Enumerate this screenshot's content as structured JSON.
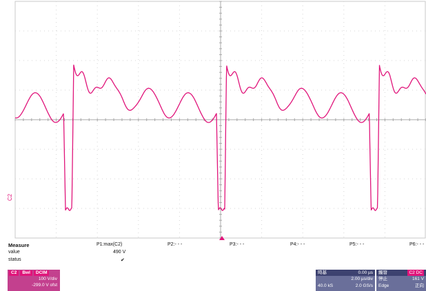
{
  "channel_marker": "C2",
  "measure": {
    "title": "Measure",
    "row_labels": {
      "value": "value",
      "status": "status"
    },
    "params": [
      {
        "name": "P1:max(C2)",
        "value": "490 V",
        "status": "✔"
      },
      {
        "name": "P2:- - -",
        "value": "",
        "status": ""
      },
      {
        "name": "P3:- - -",
        "value": "",
        "status": ""
      },
      {
        "name": "P4:- - -",
        "value": "",
        "status": ""
      },
      {
        "name": "P5:- - -",
        "value": "",
        "status": ""
      },
      {
        "name": "P6:- - -",
        "value": "",
        "status": ""
      }
    ]
  },
  "channel_panel": {
    "name": "C2",
    "tags": [
      "Bwl",
      "DCIM"
    ],
    "scale": "100 V/div",
    "offset": "-299.0 V ofst"
  },
  "timebase_panel": {
    "title": "時基",
    "delay": "0.00 µs",
    "time_div": "2.00 µs/div",
    "samples": "40.0 kS",
    "sample_rate": "2.0 GS/s"
  },
  "trigger_panel": {
    "title": "觸發",
    "badge": "C2 DC",
    "mode": "停止",
    "level": "161 V",
    "type": "Edge",
    "slope": "正向"
  },
  "colors": {
    "trace": "#e0147a",
    "grid": "#d0d0d0",
    "panel_channel": "#c3408e",
    "panel_timebase": "#6a6f9a"
  },
  "waveform": {
    "periods": [
      {
        "drop_start": 0.118,
        "rise": 0.138
      },
      {
        "drop_start": 0.49,
        "rise": 0.51
      },
      {
        "drop_start": 0.862,
        "rise": 0.882
      }
    ]
  }
}
